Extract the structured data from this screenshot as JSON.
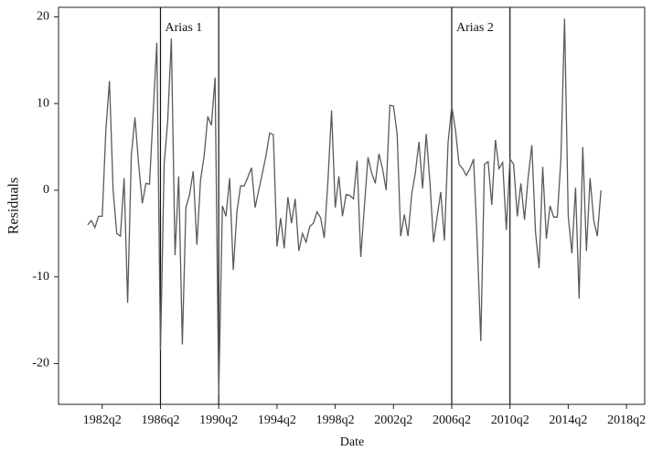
{
  "chart_data": {
    "type": "line",
    "xlabel": "Date",
    "ylabel": "Residuals",
    "x": [
      "1981q2",
      "1981q3",
      "1981q4",
      "1982q1",
      "1982q2",
      "1982q3",
      "1982q4",
      "1983q1",
      "1983q2",
      "1983q3",
      "1983q4",
      "1984q1",
      "1984q2",
      "1984q3",
      "1984q4",
      "1985q1",
      "1985q2",
      "1985q3",
      "1985q4",
      "1986q1",
      "1986q2",
      "1986q3",
      "1986q4",
      "1987q1",
      "1987q2",
      "1987q3",
      "1987q4",
      "1988q1",
      "1988q2",
      "1988q3",
      "1988q4",
      "1989q1",
      "1989q2",
      "1989q3",
      "1989q4",
      "1990q1",
      "1990q2",
      "1990q3",
      "1990q4",
      "1991q1",
      "1991q2",
      "1991q3",
      "1991q4",
      "1992q1",
      "1992q2",
      "1992q3",
      "1992q4",
      "1993q1",
      "1993q2",
      "1993q3",
      "1993q4",
      "1994q1",
      "1994q2",
      "1994q3",
      "1994q4",
      "1995q1",
      "1995q2",
      "1995q3",
      "1995q4",
      "1996q1",
      "1996q2",
      "1996q3",
      "1996q4",
      "1997q1",
      "1997q2",
      "1997q3",
      "1997q4",
      "1998q1",
      "1998q2",
      "1998q3",
      "1998q4",
      "1999q1",
      "1999q2",
      "1999q3",
      "1999q4",
      "2000q1",
      "2000q2",
      "2000q3",
      "2000q4",
      "2001q1",
      "2001q2",
      "2001q3",
      "2001q4",
      "2002q1",
      "2002q2",
      "2002q3",
      "2002q4",
      "2003q1",
      "2003q2",
      "2003q3",
      "2003q4",
      "2004q1",
      "2004q2",
      "2004q3",
      "2004q4",
      "2005q1",
      "2005q2",
      "2005q3",
      "2005q4",
      "2006q1",
      "2006q2",
      "2006q3",
      "2006q4",
      "2007q1",
      "2007q2",
      "2007q3",
      "2007q4",
      "2008q1",
      "2008q2",
      "2008q3",
      "2008q4",
      "2009q1",
      "2009q2",
      "2009q3",
      "2009q4",
      "2010q1",
      "2010q2",
      "2010q3",
      "2010q4",
      "2011q1",
      "2011q2",
      "2011q3",
      "2011q4",
      "2012q1",
      "2012q2",
      "2012q3",
      "2012q4",
      "2013q1",
      "2013q2",
      "2013q3",
      "2013q4",
      "2014q1",
      "2014q2",
      "2014q3",
      "2014q4",
      "2015q1",
      "2015q2",
      "2015q3",
      "2015q4",
      "2016q1",
      "2016q2",
      "2016q3"
    ],
    "series": [
      {
        "name": "Residuals",
        "color": "#5a5a5a",
        "values": [
          -4,
          -3.5,
          -4.3,
          -3,
          -3,
          7,
          12.6,
          0,
          -5,
          -5.3,
          1.4,
          -13,
          4,
          8.4,
          3,
          -1.5,
          0.8,
          0.7,
          9,
          17,
          -18.5,
          3,
          8,
          17.5,
          -7.5,
          1.6,
          -17.8,
          -2,
          -0.5,
          2.2,
          -6.3,
          1.2,
          4,
          8.5,
          7.5,
          13,
          -23.5,
          -1.8,
          -3,
          1.4,
          -9.2,
          -2.5,
          0.5,
          0.5,
          1.5,
          2.6,
          -2,
          0,
          2,
          4,
          6.6,
          6.4,
          -6.5,
          -3.2,
          -6.7,
          -0.8,
          -3.8,
          -1,
          -7,
          -5,
          -6,
          -4.2,
          -3.8,
          -2.5,
          -3.2,
          -5.5,
          1,
          9.2,
          -2,
          1.6,
          -3,
          -0.5,
          -0.6,
          -1,
          3.4,
          -7.7,
          -2,
          3.8,
          2,
          0.8,
          4.2,
          2.5,
          0,
          9.8,
          9.7,
          6.5,
          -5.3,
          -2.8,
          -5.3,
          -0.5,
          2,
          5.6,
          0.2,
          6.5,
          1,
          -6,
          -3,
          -0.2,
          -5.8,
          5.5,
          9.7,
          7,
          3,
          2.5,
          1.7,
          2.5,
          3.6,
          -6,
          -17.4,
          3,
          3.3,
          -1.7,
          5.8,
          2.5,
          3.2,
          -4.6,
          3.6,
          3,
          -3,
          0.8,
          -3.4,
          1.5,
          5.2,
          -4.8,
          -9,
          2.7,
          -5.6,
          -1.8,
          -3.1,
          -3.1,
          3.6,
          19.8,
          -3,
          -7.3,
          0.3,
          -12.5,
          5,
          -7,
          1.4,
          -3.5,
          -5.3,
          0
        ]
      }
    ],
    "xlim": [
      "1979q2",
      "2019q3"
    ],
    "xticks": [
      "1982q2",
      "1986q2",
      "1990q2",
      "1994q2",
      "1998q2",
      "2002q2",
      "2006q2",
      "2010q2",
      "2014q2",
      "2018q2"
    ],
    "ylim": [
      -24.7,
      21.1
    ],
    "yticks": [
      20,
      10,
      0,
      -10,
      -20
    ],
    "vlines": [
      "1986q2",
      "1990q2",
      "2006q2",
      "2010q2"
    ],
    "annotations": [
      {
        "text": "Arias 1",
        "x": "1986q2"
      },
      {
        "text": "Arias 2",
        "x": "2006q2"
      }
    ]
  }
}
